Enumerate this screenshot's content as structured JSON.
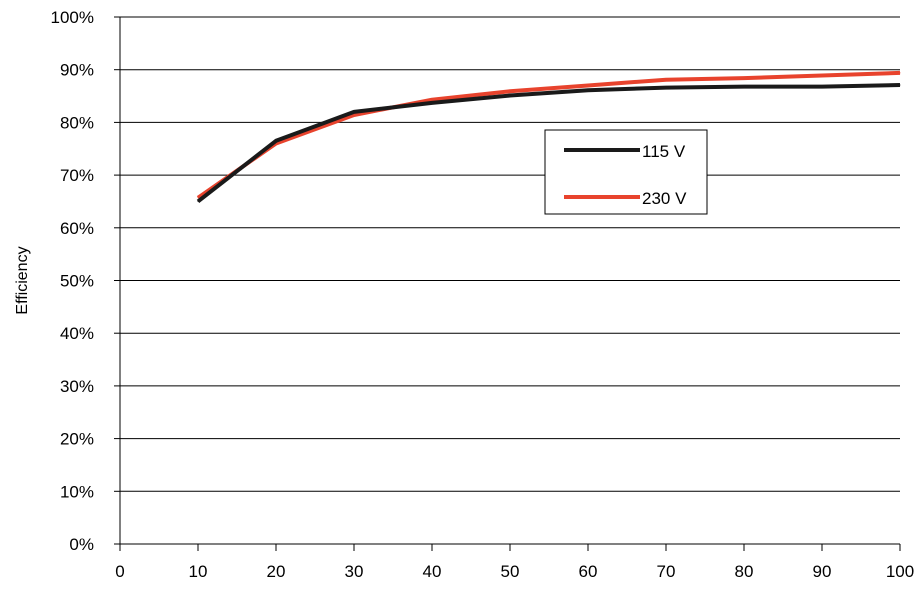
{
  "chart_data": {
    "type": "line",
    "title": "",
    "xlabel": "",
    "ylabel": "Efficiency",
    "xlim": [
      0,
      100
    ],
    "ylim": [
      0,
      100
    ],
    "x_ticks": [
      "0",
      "10",
      "20",
      "30",
      "40",
      "50",
      "60",
      "70",
      "80",
      "90",
      "100"
    ],
    "y_ticks": [
      "0%",
      "10%",
      "20%",
      "30%",
      "40%",
      "50%",
      "60%",
      "70%",
      "80%",
      "90%",
      "100%"
    ],
    "grid": "horizontal",
    "legend_position": "center-right",
    "series": [
      {
        "name": "115 V",
        "color": "#1a1a1a",
        "x": [
          10,
          20,
          30,
          40,
          50,
          60,
          70,
          80,
          90,
          100
        ],
        "y": [
          65.0,
          76.5,
          82.0,
          83.7,
          85.1,
          86.1,
          86.6,
          86.8,
          86.8,
          87.1
        ]
      },
      {
        "name": "230 V",
        "color": "#e8432d",
        "x": [
          10,
          20,
          30,
          40,
          50,
          60,
          70,
          80,
          90,
          100
        ],
        "y": [
          65.7,
          76.0,
          81.4,
          84.3,
          85.9,
          87.0,
          88.1,
          88.4,
          88.9,
          89.4
        ]
      }
    ]
  }
}
